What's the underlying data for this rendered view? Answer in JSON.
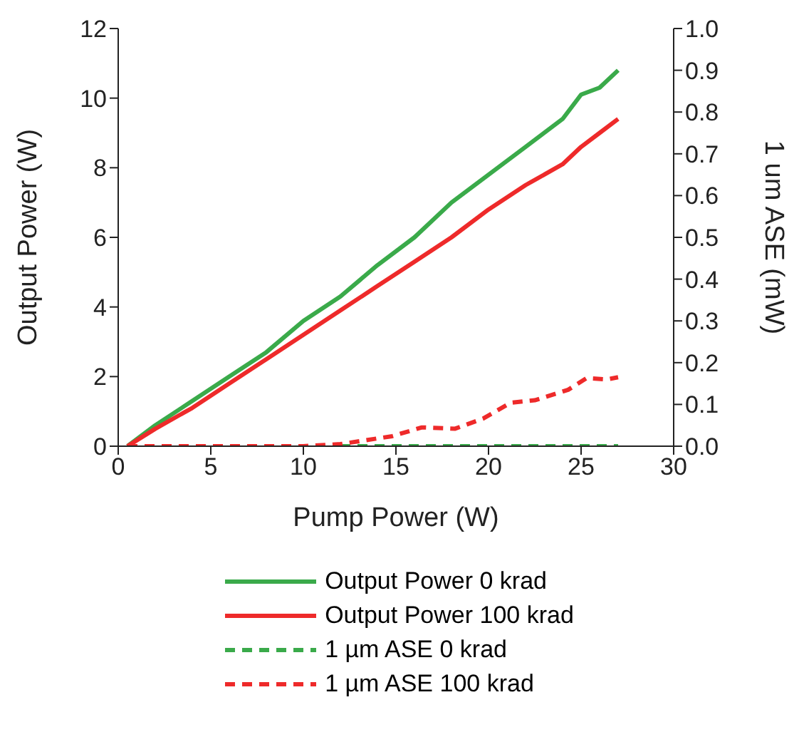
{
  "chart_data": {
    "type": "line",
    "xlabel": "Pump Power (W)",
    "ylabel": "Output Power (W)",
    "y2label": "1 um ASE (mW)",
    "xlim": [
      0,
      30
    ],
    "xticks": [
      0,
      5,
      10,
      15,
      20,
      25,
      30
    ],
    "ylim": [
      0,
      12
    ],
    "yticks": [
      0,
      2,
      4,
      6,
      8,
      10,
      12
    ],
    "y2lim": [
      0,
      1
    ],
    "y2ticks": [
      {
        "value": 0,
        "label": "0.0"
      },
      0.1,
      0.2,
      0.3,
      0.4,
      0.5,
      0.6,
      0.7,
      0.8,
      0.9,
      {
        "value": 1,
        "label": "1.0"
      }
    ],
    "legend": "bottom",
    "marker": "none",
    "series": [
      {
        "name": "Output Power 0 krad",
        "color": "#3aaa4a",
        "line_style": "solid",
        "x": [
          0.5,
          2,
          4,
          6,
          8,
          10,
          12,
          14,
          16,
          18,
          20,
          22,
          24,
          25,
          26,
          27
        ],
        "values": [
          0,
          0.6,
          1.3,
          2.0,
          2.7,
          3.6,
          4.3,
          5.2,
          6.0,
          7.0,
          7.8,
          8.6,
          9.4,
          10.1,
          10.3,
          10.8
        ]
      },
      {
        "name": "Output Power 100 krad",
        "color": "#ee2a2a",
        "line_style": "solid",
        "x": [
          0.5,
          2,
          4,
          6,
          8,
          10,
          12,
          14,
          16,
          18,
          20,
          22,
          24,
          25,
          26,
          27
        ],
        "values": [
          0,
          0.5,
          1.1,
          1.8,
          2.5,
          3.2,
          3.9,
          4.6,
          5.3,
          6.0,
          6.8,
          7.5,
          8.1,
          8.6,
          9.0,
          9.4
        ]
      },
      {
        "name": "1 µm ASE 0 krad",
        "color": "#3aaa4a",
        "line_style": "dashed",
        "axis": "y2",
        "x": [
          12,
          15,
          20,
          25,
          27
        ],
        "values": [
          0,
          0,
          0,
          0,
          0
        ]
      },
      {
        "name": "1 µm ASE 100 krad",
        "color": "#ee2a2a",
        "line_style": "dashed",
        "axis": "y2",
        "x": [
          0.5,
          10,
          12,
          14.8,
          16.4,
          18.2,
          19.7,
          21.2,
          22.5,
          24.3,
          25.3,
          26.4,
          27
        ],
        "values": [
          0,
          0,
          0.005,
          0.024,
          0.045,
          0.042,
          0.066,
          0.104,
          0.11,
          0.135,
          0.163,
          0.16,
          0.165
        ]
      }
    ]
  }
}
